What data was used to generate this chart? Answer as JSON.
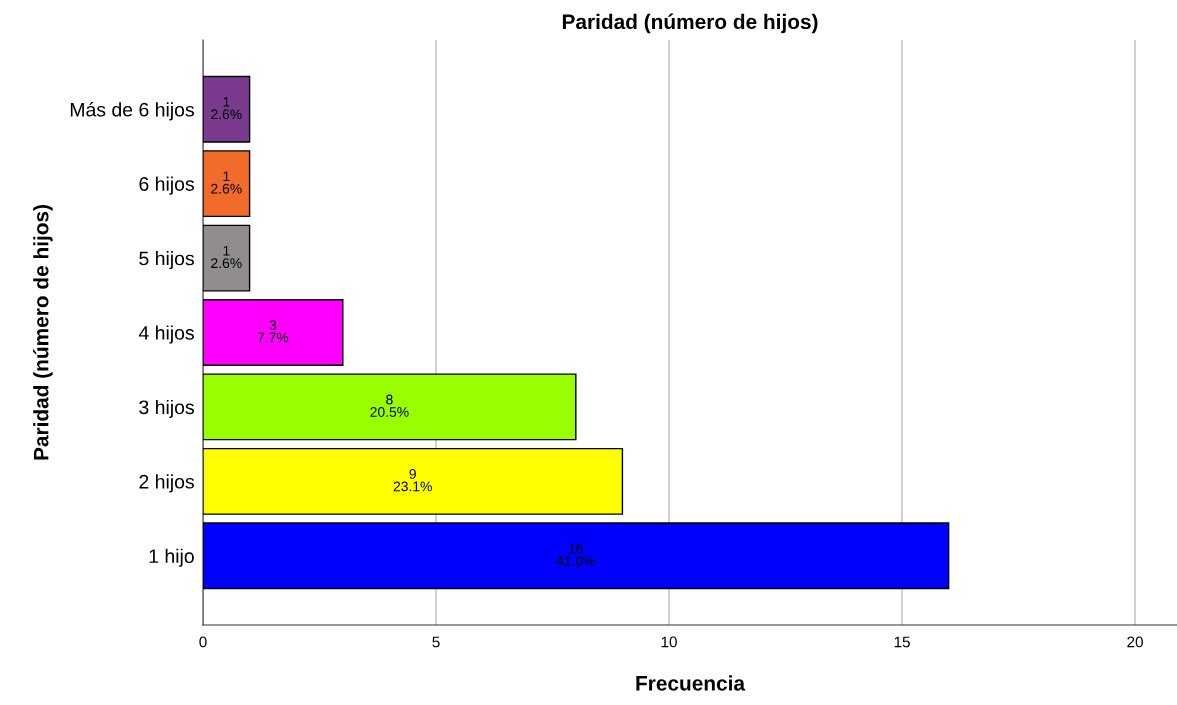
{
  "chart_data": {
    "type": "bar",
    "orientation": "horizontal",
    "title": "Paridad (número de hijos)",
    "xlabel": "Frecuencia",
    "ylabel": "Paridad (número de hijos)",
    "categories": [
      "Más de 6 hijos",
      "6 hijos",
      "5 hijos",
      "4 hijos",
      "3 hijos",
      "2 hijos",
      "1 hijo"
    ],
    "values": [
      1,
      1,
      1,
      3,
      8,
      9,
      16
    ],
    "colors": [
      "#7a3b8f",
      "#f26b2a",
      "#918d8d",
      "#ff00ff",
      "#99ff00",
      "#ffff00",
      "#0000ff"
    ],
    "value_labels": [
      "1\n2.6%",
      "1\n2.6%",
      "1\n2.6%",
      "3\n7.7%",
      "8\n20.5%",
      "9\n23.1%",
      "16\n41.0%"
    ],
    "xlim": [
      0,
      20.9
    ],
    "xticks": [
      0,
      5,
      10,
      15,
      20
    ],
    "grid": "x",
    "legend": false
  }
}
